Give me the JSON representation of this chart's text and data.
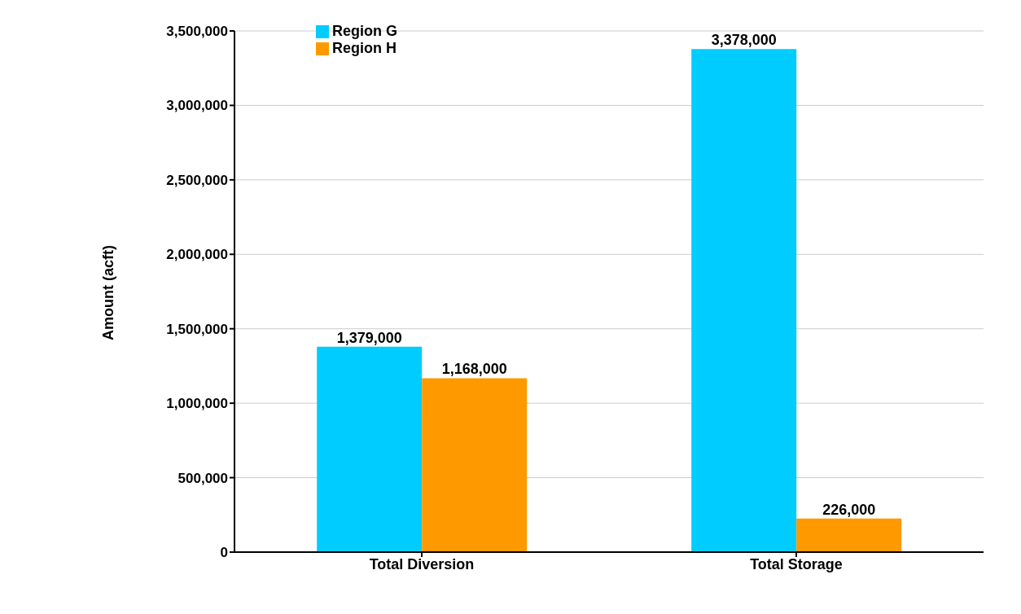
{
  "chart_data": {
    "type": "bar",
    "ylabel": "Amount (acft)",
    "categories": [
      "Total Diversion",
      "Total Storage"
    ],
    "series": [
      {
        "name": "Region G",
        "color": "#00ccff",
        "values": [
          1379000,
          3378000
        ],
        "value_labels": [
          "1,379,000",
          "3,378,000"
        ]
      },
      {
        "name": "Region H",
        "color": "#ff9900",
        "values": [
          1168000,
          226000
        ],
        "value_labels": [
          "1,168,000",
          "226,000"
        ]
      }
    ],
    "ylim": [
      0,
      3500000
    ],
    "yticks": [
      0,
      {
        "value": 500000,
        "label": "500,000"
      },
      {
        "value": 1000000,
        "label": "1,000,000"
      },
      {
        "value": 1500000,
        "label": "1,500,000"
      },
      {
        "value": 2000000,
        "label": "2,000,000"
      },
      {
        "value": 2500000,
        "label": "2,500,000"
      },
      {
        "value": 3000000,
        "label": "3,000,000"
      },
      {
        "value": 3500000,
        "label": "3,500,000"
      }
    ],
    "grid": "y",
    "legend": "top left"
  }
}
